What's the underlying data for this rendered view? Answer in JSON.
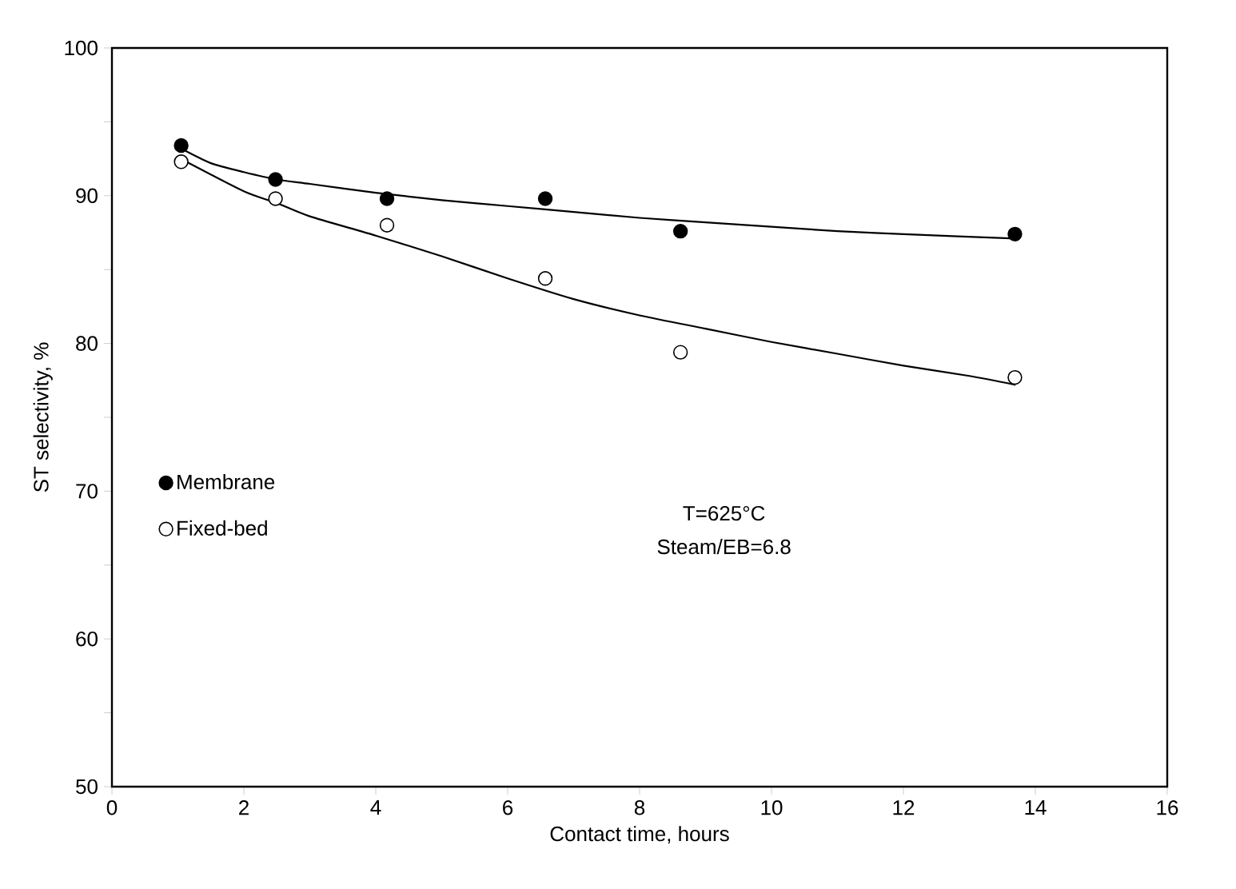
{
  "chart_data": {
    "type": "scatter",
    "xlabel": "Contact time, hours",
    "ylabel": "ST selectivity, %",
    "xlim": [
      0,
      16
    ],
    "ylim": [
      50,
      100
    ],
    "xticks": [
      0,
      2,
      4,
      6,
      8,
      10,
      12,
      14,
      16
    ],
    "yticks": [
      50,
      {
        "value": 55,
        "label": null
      },
      60,
      {
        "value": 65,
        "label": null
      },
      70,
      {
        "value": 75,
        "label": null
      },
      80,
      {
        "value": 85,
        "label": null
      },
      90,
      {
        "value": 95,
        "label": null
      },
      100
    ],
    "series": [
      {
        "name": "Membrane",
        "color": "#000000",
        "marker": "circle",
        "x": [
          1.05,
          2.48,
          4.17,
          6.57,
          8.62,
          13.69
        ],
        "values": [
          93.4,
          91.1,
          89.8,
          89.8,
          87.6,
          87.4
        ]
      },
      {
        "name": "Fixed-bed",
        "color": "#ffffff",
        "marker": "circle",
        "x": [
          1.05,
          2.48,
          4.17,
          6.57,
          8.62,
          13.69
        ],
        "values": [
          92.3,
          89.8,
          88.0,
          84.4,
          79.4,
          77.7
        ]
      },
      {
        "type": "line",
        "color": "#000000",
        "marker": "none",
        "x": [
          1.0,
          1.5,
          2.0,
          2.5,
          3.0,
          4.0,
          5.0,
          6.0,
          7.0,
          8.0,
          9.0,
          10.0,
          11.0,
          12.0,
          13.7
        ],
        "values": [
          93.3,
          92.2,
          91.6,
          91.1,
          90.8,
          90.2,
          89.7,
          89.3,
          88.9,
          88.5,
          88.2,
          87.9,
          87.6,
          87.4,
          87.1
        ]
      },
      {
        "type": "line",
        "color": "#000000",
        "marker": "none",
        "x": [
          1.0,
          2.0,
          2.5,
          3.0,
          4.0,
          5.0,
          6.0,
          7.0,
          8.0,
          9.0,
          10.0,
          11.0,
          12.0,
          13.0,
          13.7
        ],
        "values": [
          92.6,
          90.3,
          89.5,
          88.6,
          87.3,
          85.9,
          84.4,
          83.0,
          81.9,
          81.0,
          80.1,
          79.3,
          78.5,
          77.8,
          77.2
        ]
      }
    ],
    "legend": "center left",
    "annotations": [
      "T=625°C",
      "Steam/EB=6.8"
    ]
  }
}
